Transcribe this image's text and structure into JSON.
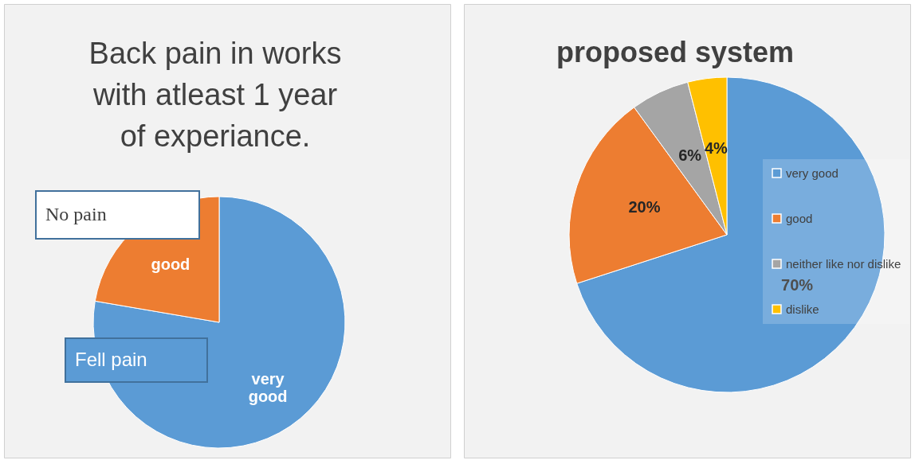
{
  "chart_data": [
    {
      "type": "pie",
      "title": "Back pain in works with atleast 1 year of experiance.",
      "categories": [
        "very good",
        "good"
      ],
      "values": [
        77.7,
        22.3
      ],
      "colors": [
        "#5b9bd5",
        "#ed7d31"
      ],
      "legend": false,
      "annotations": [
        "No pain",
        "Fell pain"
      ]
    },
    {
      "type": "pie",
      "title": "proposed system",
      "categories": [
        "very good",
        "good",
        "neither like nor dislike",
        "dislike"
      ],
      "values": [
        70,
        20,
        6,
        4
      ],
      "colors": [
        "#5b9bd5",
        "#ed7d31",
        "#a5a5a5",
        "#ffc000"
      ],
      "legend": "right",
      "value_labels": [
        "70%",
        "20%",
        "6%",
        "4%"
      ]
    }
  ]
}
